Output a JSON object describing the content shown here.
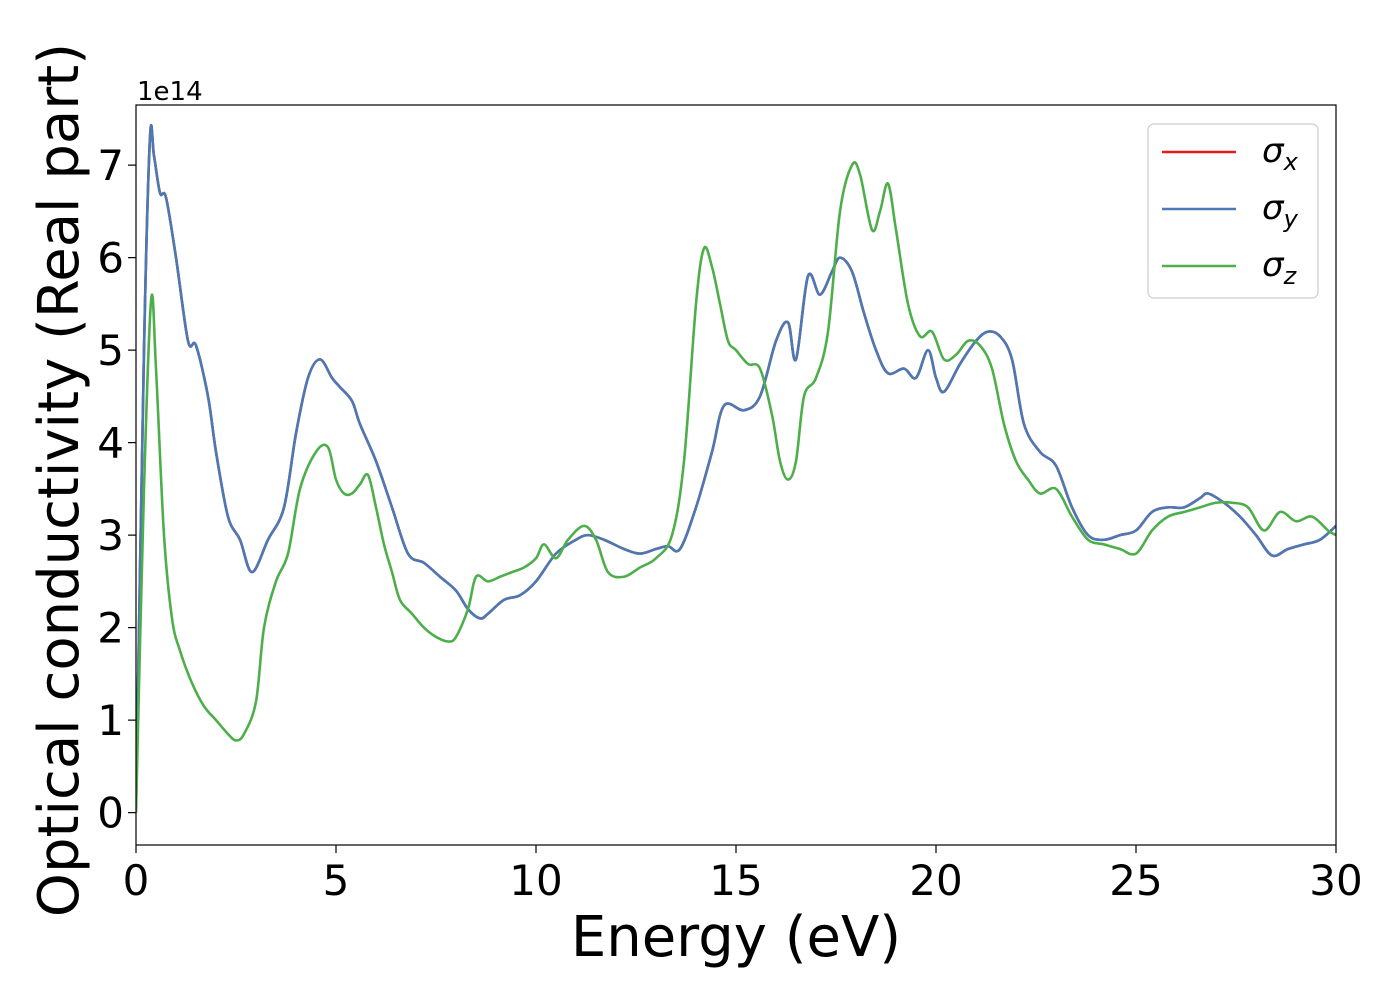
{
  "chart_data": {
    "type": "line",
    "xlabel": "Energy (eV)",
    "ylabel": "Optical conductivity (Real part)",
    "offset_label": "1e14",
    "xlim": [
      0,
      30
    ],
    "ylim": [
      -0.35,
      7.65
    ],
    "xticks": [
      0,
      5,
      10,
      15,
      20,
      25,
      30
    ],
    "xtick_labels": [
      "0",
      "5",
      "10",
      "15",
      "20",
      "25",
      "30"
    ],
    "yticks": [
      0,
      1,
      2,
      3,
      4,
      5,
      6,
      7
    ],
    "ytick_labels": [
      "0",
      "1",
      "2",
      "3",
      "4",
      "5",
      "6",
      "7"
    ],
    "grid": false,
    "legend_position": "top-right",
    "series": [
      {
        "name": "σx",
        "legend_symbol": "σ",
        "legend_sub": "x",
        "color": "#e41a1c",
        "x": [
          0,
          0.2,
          0.35,
          0.45,
          0.6,
          0.75,
          1.0,
          1.3,
          1.5,
          1.8,
          2.0,
          2.3,
          2.6,
          2.9,
          3.3,
          3.7,
          4.0,
          4.3,
          4.6,
          4.9,
          5.1,
          5.4,
          5.6,
          6.0,
          6.4,
          6.8,
          7.2,
          7.6,
          8.0,
          8.3,
          8.6,
          8.8,
          9.2,
          9.6,
          10.0,
          10.5,
          11.0,
          11.3,
          11.7,
          12.2,
          12.6,
          13.0,
          13.3,
          13.6,
          14.0,
          14.4,
          14.7,
          15.2,
          15.6,
          16.0,
          16.3,
          16.5,
          16.8,
          17.1,
          17.4,
          17.6,
          17.9,
          18.2,
          18.5,
          18.8,
          19.2,
          19.5,
          19.8,
          20.0,
          20.2,
          20.6,
          21.0,
          21.3,
          21.6,
          21.9,
          22.2,
          22.6,
          23.0,
          23.4,
          23.8,
          24.2,
          24.6,
          25.0,
          25.4,
          25.8,
          26.2,
          26.6,
          26.8,
          27.2,
          27.6,
          28.0,
          28.4,
          28.8,
          29.2,
          29.6,
          30.0
        ],
        "y": [
          0.05,
          5.0,
          7.3,
          7.1,
          6.7,
          6.65,
          6.0,
          5.1,
          5.05,
          4.5,
          3.9,
          3.2,
          2.95,
          2.6,
          2.95,
          3.3,
          4.1,
          4.7,
          4.9,
          4.7,
          4.6,
          4.45,
          4.2,
          3.8,
          3.3,
          2.8,
          2.7,
          2.55,
          2.4,
          2.2,
          2.1,
          2.15,
          2.3,
          2.35,
          2.5,
          2.8,
          2.95,
          3.0,
          2.95,
          2.85,
          2.8,
          2.85,
          2.88,
          2.85,
          3.3,
          3.9,
          4.4,
          4.35,
          4.5,
          5.1,
          5.3,
          4.9,
          5.8,
          5.6,
          5.85,
          6.0,
          5.85,
          5.4,
          5.0,
          4.75,
          4.8,
          4.7,
          5.0,
          4.7,
          4.55,
          4.85,
          5.1,
          5.2,
          5.15,
          4.9,
          4.2,
          3.9,
          3.75,
          3.3,
          3.0,
          2.95,
          3.0,
          3.05,
          3.25,
          3.3,
          3.3,
          3.4,
          3.45,
          3.35,
          3.2,
          3.0,
          2.78,
          2.85,
          2.9,
          2.95,
          3.1
        ]
      },
      {
        "name": "σy",
        "legend_symbol": "σ",
        "legend_sub": "y",
        "color": "#4a7ab5",
        "x": [
          0,
          0.2,
          0.35,
          0.45,
          0.6,
          0.75,
          1.0,
          1.3,
          1.5,
          1.8,
          2.0,
          2.3,
          2.6,
          2.9,
          3.3,
          3.7,
          4.0,
          4.3,
          4.6,
          4.9,
          5.1,
          5.4,
          5.6,
          6.0,
          6.4,
          6.8,
          7.2,
          7.6,
          8.0,
          8.3,
          8.6,
          8.8,
          9.2,
          9.6,
          10.0,
          10.5,
          11.0,
          11.3,
          11.7,
          12.2,
          12.6,
          13.0,
          13.3,
          13.6,
          14.0,
          14.4,
          14.7,
          15.2,
          15.6,
          16.0,
          16.3,
          16.5,
          16.8,
          17.1,
          17.4,
          17.6,
          17.9,
          18.2,
          18.5,
          18.8,
          19.2,
          19.5,
          19.8,
          20.0,
          20.2,
          20.6,
          21.0,
          21.3,
          21.6,
          21.9,
          22.2,
          22.6,
          23.0,
          23.4,
          23.8,
          24.2,
          24.6,
          25.0,
          25.4,
          25.8,
          26.2,
          26.6,
          26.8,
          27.2,
          27.6,
          28.0,
          28.4,
          28.8,
          29.2,
          29.6,
          30.0
        ],
        "y": [
          0.05,
          5.0,
          7.3,
          7.1,
          6.7,
          6.65,
          6.0,
          5.1,
          5.05,
          4.5,
          3.9,
          3.2,
          2.95,
          2.6,
          2.95,
          3.3,
          4.1,
          4.7,
          4.9,
          4.7,
          4.6,
          4.45,
          4.2,
          3.8,
          3.3,
          2.8,
          2.7,
          2.55,
          2.4,
          2.2,
          2.1,
          2.15,
          2.3,
          2.35,
          2.5,
          2.8,
          2.95,
          3.0,
          2.95,
          2.85,
          2.8,
          2.85,
          2.88,
          2.85,
          3.3,
          3.9,
          4.4,
          4.35,
          4.5,
          5.1,
          5.3,
          4.9,
          5.8,
          5.6,
          5.85,
          6.0,
          5.85,
          5.4,
          5.0,
          4.75,
          4.8,
          4.7,
          5.0,
          4.7,
          4.55,
          4.85,
          5.1,
          5.2,
          5.15,
          4.9,
          4.2,
          3.9,
          3.75,
          3.3,
          3.0,
          2.95,
          3.0,
          3.05,
          3.25,
          3.3,
          3.3,
          3.4,
          3.45,
          3.35,
          3.2,
          3.0,
          2.78,
          2.85,
          2.9,
          2.95,
          3.1
        ]
      },
      {
        "name": "σz",
        "legend_symbol": "σ",
        "legend_sub": "z",
        "color": "#4daf4a",
        "x": [
          0,
          0.2,
          0.38,
          0.5,
          0.7,
          0.9,
          1.1,
          1.4,
          1.7,
          2.0,
          2.3,
          2.5,
          2.7,
          3.0,
          3.2,
          3.5,
          3.8,
          4.1,
          4.5,
          4.8,
          5.0,
          5.2,
          5.4,
          5.6,
          5.8,
          6.0,
          6.2,
          6.4,
          6.6,
          6.9,
          7.2,
          7.5,
          7.8,
          8.0,
          8.3,
          8.5,
          8.8,
          9.1,
          9.4,
          9.7,
          10.0,
          10.2,
          10.5,
          10.8,
          11.2,
          11.5,
          11.8,
          12.2,
          12.6,
          13.0,
          13.4,
          13.7,
          14.0,
          14.2,
          14.4,
          14.6,
          14.8,
          15.0,
          15.3,
          15.6,
          15.9,
          16.1,
          16.3,
          16.5,
          16.7,
          17.0,
          17.3,
          17.6,
          17.9,
          18.1,
          18.4,
          18.6,
          18.8,
          19.0,
          19.3,
          19.6,
          19.9,
          20.2,
          20.5,
          20.8,
          21.1,
          21.4,
          21.7,
          22.0,
          22.3,
          22.6,
          23.0,
          23.4,
          23.8,
          24.2,
          24.6,
          25.0,
          25.4,
          25.8,
          26.2,
          26.6,
          27.0,
          27.4,
          27.8,
          28.2,
          28.6,
          29.0,
          29.4,
          29.8,
          30.0
        ],
        "y": [
          0.0,
          3.5,
          5.55,
          4.8,
          3.0,
          2.1,
          1.75,
          1.4,
          1.15,
          1.0,
          0.85,
          0.78,
          0.85,
          1.2,
          2.0,
          2.5,
          2.8,
          3.5,
          3.9,
          3.95,
          3.6,
          3.45,
          3.45,
          3.55,
          3.65,
          3.3,
          2.9,
          2.6,
          2.3,
          2.15,
          2.0,
          1.9,
          1.85,
          1.9,
          2.2,
          2.55,
          2.5,
          2.55,
          2.6,
          2.65,
          2.75,
          2.9,
          2.75,
          2.95,
          3.1,
          2.95,
          2.6,
          2.55,
          2.65,
          2.75,
          3.0,
          3.8,
          5.5,
          6.1,
          5.9,
          5.5,
          5.1,
          5.0,
          4.85,
          4.8,
          4.3,
          3.8,
          3.6,
          3.8,
          4.5,
          4.7,
          5.2,
          6.5,
          7.0,
          6.9,
          6.3,
          6.5,
          6.8,
          6.3,
          5.5,
          5.15,
          5.2,
          4.9,
          4.95,
          5.1,
          5.05,
          4.8,
          4.2,
          3.8,
          3.6,
          3.45,
          3.5,
          3.2,
          2.95,
          2.9,
          2.85,
          2.8,
          3.05,
          3.2,
          3.25,
          3.3,
          3.35,
          3.35,
          3.3,
          3.05,
          3.25,
          3.15,
          3.2,
          3.05,
          3.0
        ]
      }
    ]
  }
}
